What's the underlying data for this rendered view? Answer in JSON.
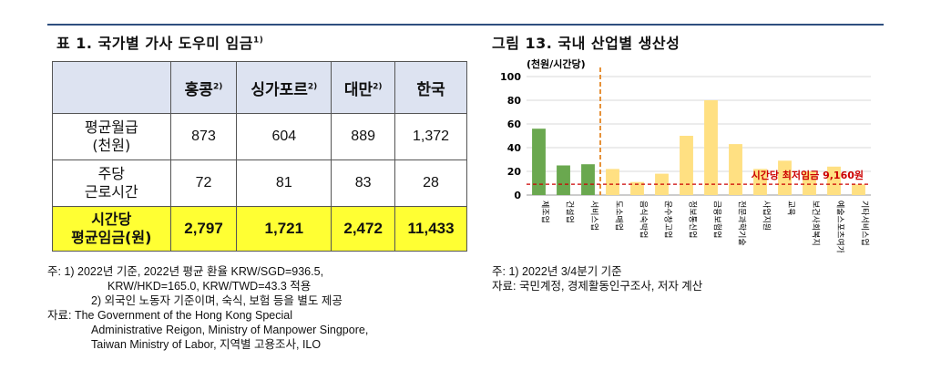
{
  "table": {
    "title": "표 1. 국가별 가사 도우미 임금",
    "title_sup": "1)",
    "columns": [
      {
        "label": "홍콩",
        "sup": "2)"
      },
      {
        "label": "싱가포르",
        "sup": "2)"
      },
      {
        "label": "대만",
        "sup": "2)"
      },
      {
        "label": "한국",
        "sup": ""
      }
    ],
    "rows": [
      {
        "label_1": "평균월급",
        "label_2": "(천원)",
        "values": [
          "873",
          "604",
          "889",
          "1,372"
        ]
      },
      {
        "label_1": "주당",
        "label_2": "근로시간",
        "values": [
          "72",
          "81",
          "83",
          "28"
        ]
      }
    ],
    "highlight_row": {
      "label_1": "시간당",
      "label_2": "평균임금(원)",
      "values": [
        "2,797",
        "1,721",
        "2,472",
        "11,433"
      ]
    },
    "highlight_color": "#ffff33",
    "header_color": "#dde3f1"
  },
  "left_notes": {
    "line1": "주: 1) 2022년 기준, 2022년 평균 환율 KRW/SGD=936.5,",
    "line2": "KRW/HKD=165.0, KRW/TWD=43.3 적용",
    "line3": "2) 외국인 노동자 기준이며, 숙식, 보험 등을 별도 제공",
    "line4": "자료: The Government of the Hong Kong Special",
    "line5": "Administrative Reigon, Ministry of Manpower Singpore,",
    "line6": "Taiwan Ministry of Labor, 지역별 고용조사, ILO"
  },
  "chart_title": "그림 13. 국내 산업별 생산성",
  "chart_data": {
    "type": "bar",
    "ylabel": "(천원/시간당)",
    "ylim": [
      0,
      100
    ],
    "yticks": [
      0,
      20,
      40,
      60,
      80,
      100
    ],
    "categories": [
      "제조업",
      "건설업",
      "서비스업",
      "도소매업",
      "음식숙박업",
      "운수창고업",
      "정보통신업",
      "금융보험업",
      "전문과학기술",
      "사업지원",
      "교육",
      "보건사회복지",
      "예술스포츠여가",
      "기타서비스업"
    ],
    "values": [
      56,
      25,
      26,
      22,
      11,
      18,
      50,
      80,
      43,
      22,
      29,
      20,
      24,
      9
    ],
    "bar_colors": [
      "#6aa84f",
      "#6aa84f",
      "#6aa84f",
      "#ffe082",
      "#ffe082",
      "#ffe082",
      "#ffe082",
      "#ffe082",
      "#ffe082",
      "#ffe082",
      "#ffe082",
      "#ffe082",
      "#ffe082",
      "#ffe082"
    ],
    "reference_line": {
      "value": 9.16,
      "label": "시간당 최저임금 9,160원",
      "color": "#cc0000"
    },
    "divider_after_index": 2,
    "divider_color": "#e69138",
    "gridlines": true
  },
  "right_notes": {
    "line1": "주: 1) 2022년  3/4분기 기준",
    "line2": "자료: 국민계정, 경제활동인구조사, 저자 계산"
  }
}
